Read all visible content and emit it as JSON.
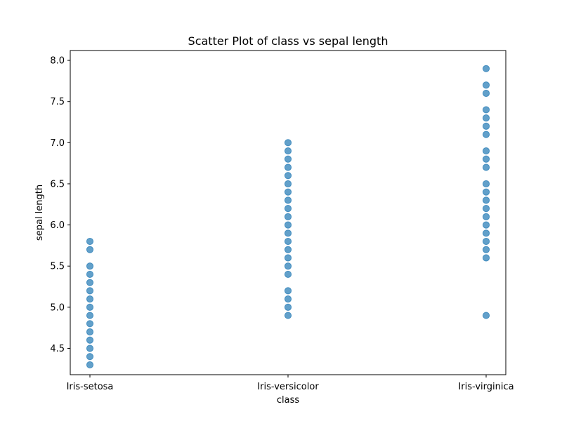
{
  "chart_data": {
    "type": "scatter",
    "title": "Scatter Plot of class vs sepal length",
    "xlabel": "class",
    "ylabel": "sepal length",
    "categories": [
      "Iris-setosa",
      "Iris-versicolor",
      "Iris-virginica"
    ],
    "ylim": [
      4.18,
      8.12
    ],
    "yticks": [
      "4.5",
      "5.0",
      "5.5",
      "6.0",
      "6.5",
      "7.0",
      "7.5",
      "8.0"
    ],
    "grid": false,
    "marker_color": "#1f77b4",
    "marker_alpha": 0.7,
    "series": [
      {
        "category": "Iris-setosa",
        "values": [
          4.3,
          4.4,
          4.5,
          4.6,
          4.7,
          4.8,
          4.9,
          5.0,
          5.1,
          5.2,
          5.3,
          5.4,
          5.5,
          5.7,
          5.8
        ]
      },
      {
        "category": "Iris-versicolor",
        "values": [
          4.9,
          5.0,
          5.1,
          5.2,
          5.4,
          5.5,
          5.6,
          5.7,
          5.8,
          5.9,
          6.0,
          6.1,
          6.2,
          6.3,
          6.4,
          6.5,
          6.6,
          6.7,
          6.8,
          6.9,
          7.0
        ]
      },
      {
        "category": "Iris-virginica",
        "values": [
          4.9,
          5.6,
          5.7,
          5.8,
          5.9,
          6.0,
          6.1,
          6.2,
          6.3,
          6.4,
          6.5,
          6.7,
          6.8,
          6.9,
          7.1,
          7.2,
          7.3,
          7.4,
          7.6,
          7.7,
          7.9
        ]
      }
    ]
  }
}
